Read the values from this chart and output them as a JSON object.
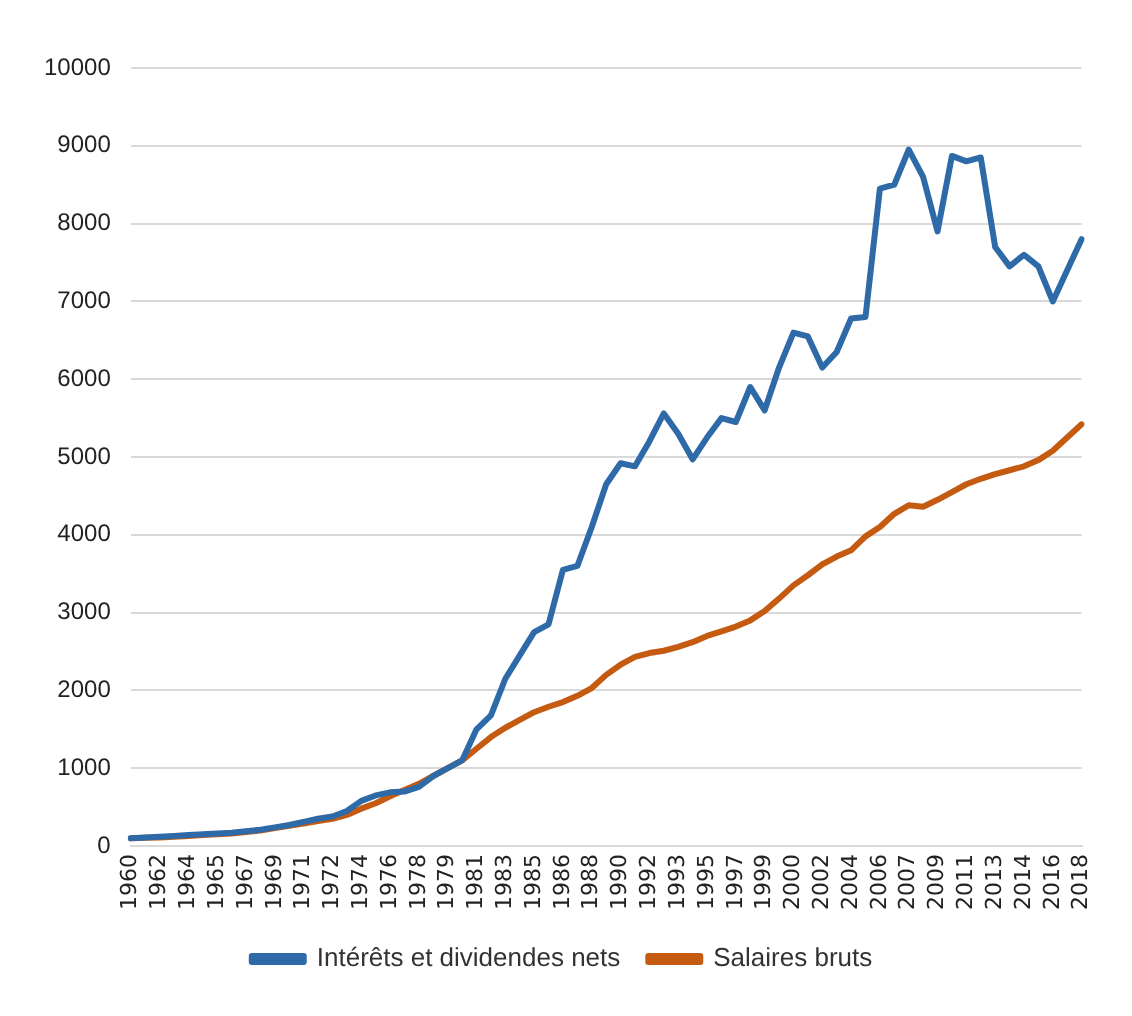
{
  "chart_data": {
    "type": "line",
    "categories": [
      "1960",
      null,
      "1962",
      null,
      "1964",
      null,
      "1965",
      null,
      "1967",
      null,
      "1969",
      null,
      "1971",
      null,
      "1972",
      null,
      "1974",
      null,
      "1976",
      null,
      "1978",
      null,
      "1979",
      null,
      "1981",
      null,
      "1983",
      null,
      "1985",
      null,
      "1986",
      null,
      "1988",
      null,
      "1990",
      null,
      "1992",
      null,
      "1993",
      null,
      "1995",
      null,
      "1997",
      null,
      "1999",
      null,
      "2000",
      null,
      "2002",
      null,
      "2004",
      null,
      "2006",
      null,
      "2007",
      null,
      "2009",
      null,
      "2011",
      null,
      "2013",
      null,
      "2014",
      null,
      "2016",
      null,
      "2018"
    ],
    "series": [
      {
        "name": "Intérêts et dividendes nets",
        "color": "#2e6aa8",
        "values": [
          100,
          110,
          120,
          130,
          140,
          150,
          160,
          170,
          190,
          210,
          240,
          270,
          310,
          350,
          380,
          450,
          580,
          650,
          690,
          700,
          760,
          900,
          1000,
          1100,
          1500,
          1680,
          2150,
          2450,
          2750,
          2850,
          3550,
          3600,
          4100,
          4650,
          4920,
          4880,
          5200,
          5560,
          5300,
          4970,
          5250,
          5500,
          5450,
          5900,
          5600,
          6150,
          6600,
          6550,
          6150,
          6350,
          6780,
          6800,
          8450,
          8500,
          8950,
          8600,
          7900,
          8870,
          8800,
          8850,
          7700,
          7450,
          7600,
          7450,
          7000,
          7400,
          7800
        ]
      },
      {
        "name": "Salaires bruts",
        "color": "#c55a11",
        "values": [
          100,
          105,
          110,
          120,
          130,
          140,
          150,
          160,
          180,
          200,
          230,
          260,
          290,
          320,
          350,
          400,
          480,
          550,
          640,
          720,
          800,
          900,
          1000,
          1100,
          1250,
          1400,
          1520,
          1620,
          1720,
          1790,
          1850,
          1930,
          2030,
          2200,
          2330,
          2430,
          2480,
          2510,
          2560,
          2620,
          2700,
          2760,
          2820,
          2900,
          3020,
          3180,
          3350,
          3480,
          3620,
          3720,
          3800,
          3980,
          4100,
          4270,
          4380,
          4360,
          4450,
          4550,
          4650,
          4720,
          4780,
          4830,
          4880,
          4960,
          5080,
          5250,
          5420
        ]
      }
    ],
    "ylim": [
      0,
      10000
    ],
    "yticks": [
      0,
      1000,
      2000,
      3000,
      4000,
      5000,
      6000,
      7000,
      8000,
      9000,
      10000
    ],
    "grid": "y",
    "legend": "bottom",
    "marker": "none",
    "line_style": "solid"
  }
}
